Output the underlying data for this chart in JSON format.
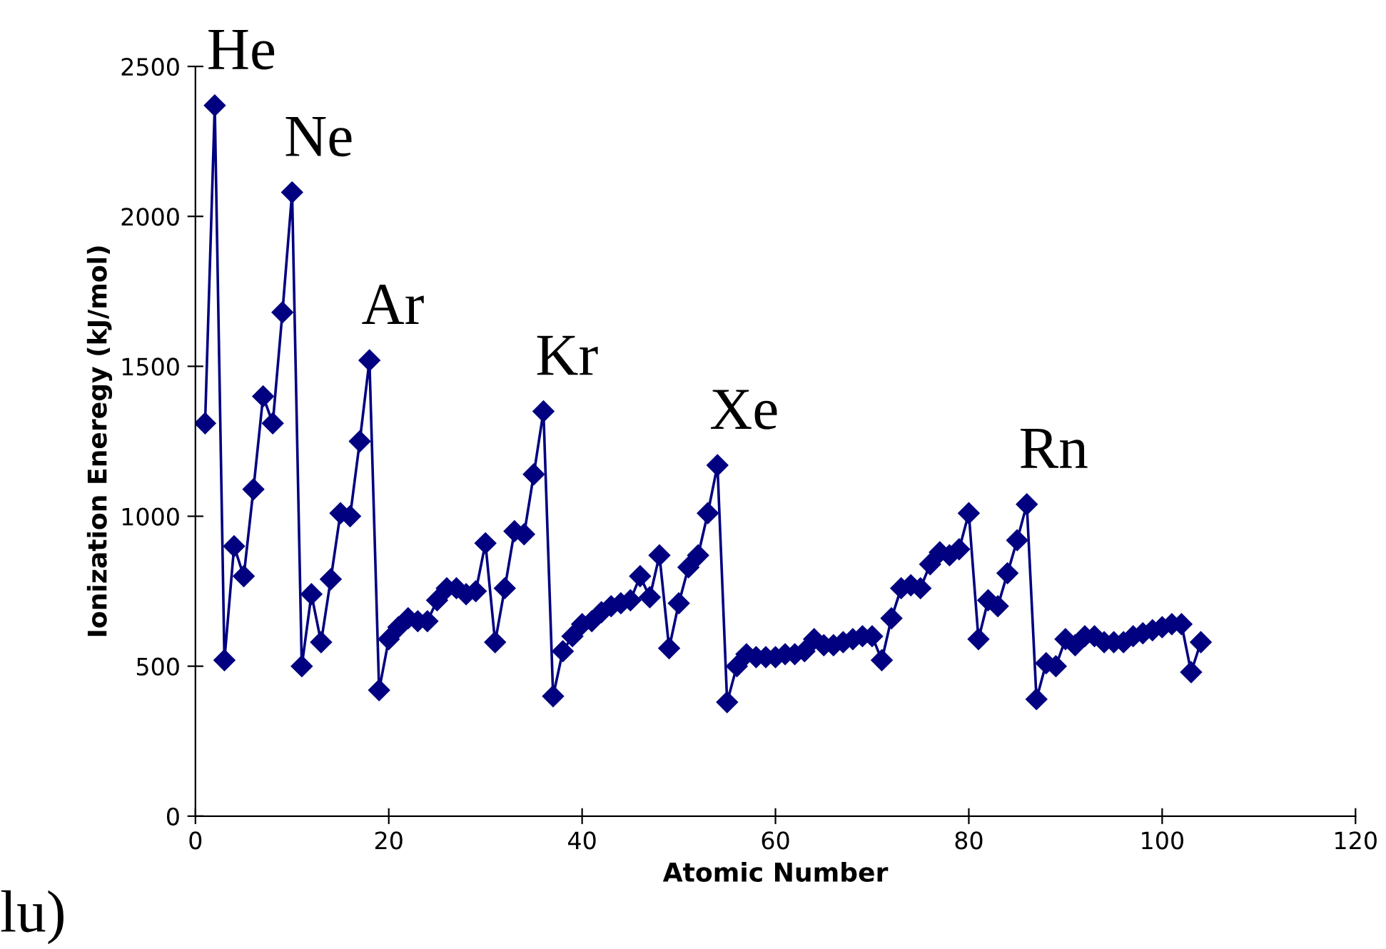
{
  "chart_data": {
    "type": "line",
    "xlabel": "Atomic Number",
    "ylabel": "Ionization Eneregy (kJ/mol)",
    "xlim": [
      0,
      120
    ],
    "xticks": [
      0,
      20,
      40,
      60,
      80,
      100,
      120
    ],
    "ylim": [
      0,
      2500
    ],
    "yticks": [
      0,
      500,
      1000,
      1500,
      2000,
      2500
    ],
    "grid": false,
    "legend": false,
    "marker": "diamond",
    "line_style": "solid",
    "series": [
      {
        "color": "#000080",
        "x": [
          1,
          2,
          3,
          4,
          5,
          6,
          7,
          8,
          9,
          10,
          11,
          12,
          13,
          14,
          15,
          16,
          17,
          18,
          19,
          20,
          21,
          22,
          23,
          24,
          25,
          26,
          27,
          28,
          29,
          30,
          31,
          32,
          33,
          34,
          35,
          36,
          37,
          38,
          39,
          40,
          41,
          42,
          43,
          44,
          45,
          46,
          47,
          48,
          49,
          50,
          51,
          52,
          53,
          54,
          55,
          56,
          57,
          58,
          59,
          60,
          61,
          62,
          63,
          64,
          65,
          66,
          67,
          68,
          69,
          70,
          71,
          72,
          73,
          74,
          75,
          76,
          77,
          78,
          79,
          80,
          81,
          82,
          83,
          84,
          85,
          86,
          87,
          88,
          89,
          90,
          91,
          92,
          93,
          94,
          95,
          96,
          97,
          98,
          99,
          100,
          101,
          102,
          103,
          104
        ],
        "values": [
          1310,
          2370,
          520,
          900,
          800,
          1090,
          1400,
          1310,
          1680,
          2080,
          500,
          740,
          580,
          790,
          1010,
          1000,
          1250,
          1520,
          420,
          590,
          630,
          660,
          650,
          650,
          720,
          760,
          760,
          740,
          750,
          910,
          580,
          760,
          950,
          940,
          1140,
          1350,
          400,
          550,
          600,
          640,
          650,
          680,
          700,
          710,
          720,
          800,
          730,
          870,
          560,
          710,
          830,
          870,
          1010,
          1170,
          380,
          500,
          540,
          530,
          530,
          530,
          540,
          540,
          550,
          590,
          570,
          570,
          580,
          590,
          600,
          600,
          520,
          660,
          760,
          770,
          760,
          840,
          880,
          870,
          890,
          1010,
          590,
          720,
          700,
          810,
          920,
          1040,
          390,
          510,
          500,
          590,
          570,
          600,
          600,
          580,
          580,
          580,
          600,
          610,
          620,
          630,
          640,
          640,
          480,
          580
        ]
      }
    ],
    "annotations": [
      {
        "text": "He",
        "x": 2,
        "y": 2370
      },
      {
        "text": "Ne",
        "x": 10,
        "y": 2080
      },
      {
        "text": "Ar",
        "x": 18,
        "y": 1520
      },
      {
        "text": "Kr",
        "x": 36,
        "y": 1350
      },
      {
        "text": "Xe",
        "x": 54,
        "y": 1170
      },
      {
        "text": "Rn",
        "x": 86,
        "y": 1040
      },
      "lu)"
    ]
  }
}
